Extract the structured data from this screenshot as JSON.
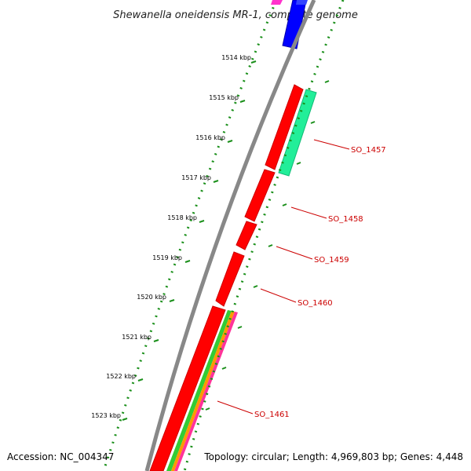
{
  "title": "Shewanella oneidensis MR-1, complete genome",
  "ticks": [
    "1514 kbp",
    "1515 kbp",
    "1516 kbp",
    "1517 kbp",
    "1518 kbp",
    "1519 kbp",
    "1520 kbp",
    "1521 kbp",
    "1522 kbp",
    "1523 kbp"
  ],
  "genes": [
    {
      "label": "SO_1457",
      "color": "#ff0000"
    },
    {
      "label": "SO_1458",
      "color": "#ff0000"
    },
    {
      "label": "SO_1459",
      "color": "#ff0000"
    },
    {
      "label": "SO_1460",
      "color": "#ff0000"
    },
    {
      "label": "SO_1461",
      "color": "#ff0000"
    }
  ],
  "feature_colors": {
    "backbone": "#888888",
    "forward_cds": "#ff0000",
    "reverse_cds_top": "#0000ff",
    "rna": "#ff33cc",
    "aqua_feature": "#22ee99",
    "stripe_green": "#33cc33",
    "stripe_orange": "#ff9900",
    "stripe_pink": "#ff3399",
    "dotted_ring": "#1a8f1a",
    "label_line": "#cc0000"
  },
  "footer": {
    "accession": "Accession: NC_004347",
    "summary": "Topology: circular; Length: 4,969,803 bp; Genes: 4,448"
  }
}
